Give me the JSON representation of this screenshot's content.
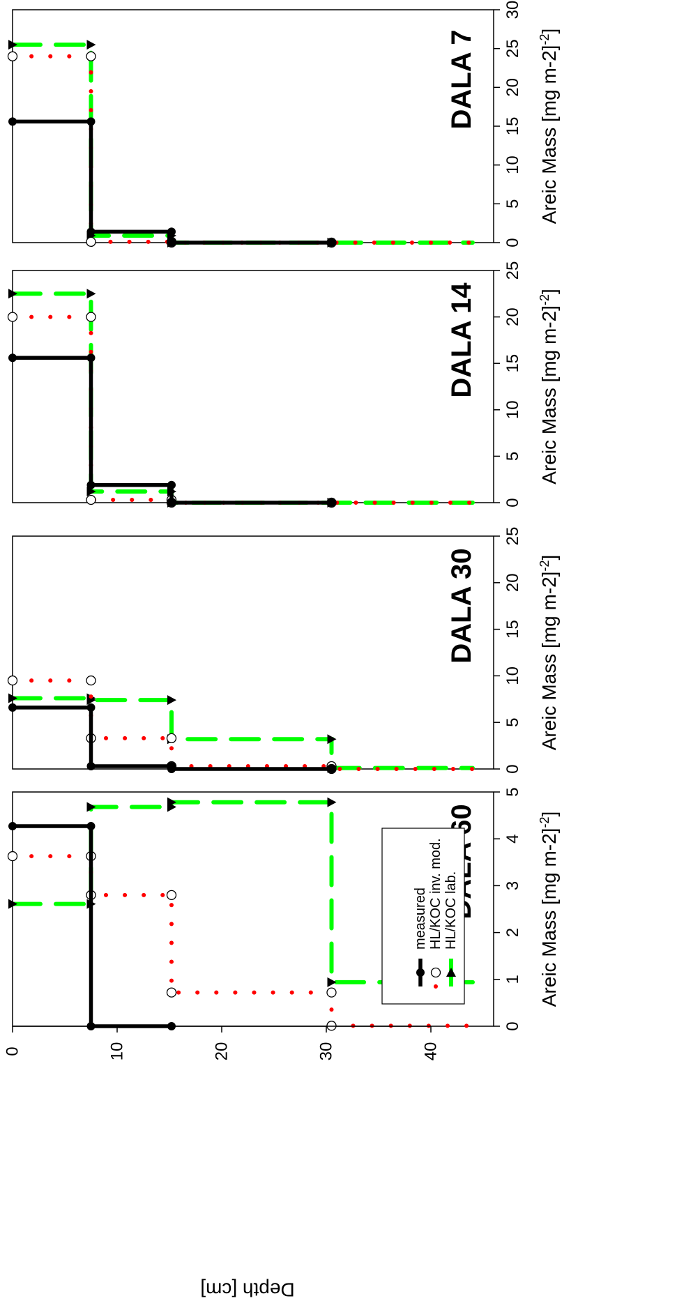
{
  "chart_data": {
    "type": "line",
    "ylabel": "Depth [cm]",
    "xlabel": "Areic Mass [mg m-2]",
    "ylim": [
      0,
      45
    ],
    "yticks": [
      0,
      10,
      20,
      30,
      40
    ],
    "legend": {
      "placement": "bottom-right",
      "entries": [
        {
          "series": "measured",
          "label": "measured"
        },
        {
          "series": "inv",
          "label": "HL/KOC inv. mod."
        },
        {
          "series": "lab",
          "label": "HL/KOC  lab."
        }
      ]
    },
    "series_styles": {
      "measured": {
        "color": "#000000",
        "marker": "filled-circle"
      },
      "inv": {
        "color": "#ff0000",
        "marker": "open-circle"
      },
      "lab": {
        "color": "#00ff00",
        "marker": "filled-triangle"
      }
    },
    "panels": [
      {
        "title": "DALA 7",
        "xlim": [
          0,
          30
        ],
        "xticks": [
          "0",
          "5",
          "10",
          "15",
          "20",
          "25",
          "30"
        ],
        "series": [
          {
            "key": "measured",
            "layers": [
              {
                "top": 0,
                "bottom": 7.5,
                "value": 15.6
              },
              {
                "top": 7.5,
                "bottom": 15.2,
                "value": 1.4
              },
              {
                "top": 15.2,
                "bottom": 30.5,
                "value": 0.0
              }
            ]
          },
          {
            "key": "inv",
            "layers": [
              {
                "top": 0,
                "bottom": 7.5,
                "value": 24.0
              },
              {
                "top": 7.5,
                "bottom": 15.2,
                "value": 0.1
              },
              {
                "top": 15.2,
                "bottom": 30.5,
                "value": 0.0
              },
              {
                "top": 30.5,
                "bottom": 44.0,
                "value": 0.0
              }
            ]
          },
          {
            "key": "lab",
            "layers": [
              {
                "top": 0,
                "bottom": 7.5,
                "value": 25.5
              },
              {
                "top": 7.5,
                "bottom": 15.2,
                "value": 0.9
              },
              {
                "top": 15.2,
                "bottom": 30.5,
                "value": 0.0
              },
              {
                "top": 30.5,
                "bottom": 44.0,
                "value": 0.0
              }
            ]
          }
        ]
      },
      {
        "title": "DALA 14",
        "xlim": [
          0,
          25
        ],
        "xticks": [
          "0",
          "5",
          "10",
          "15",
          "20",
          "25"
        ],
        "series": [
          {
            "key": "measured",
            "layers": [
              {
                "top": 0,
                "bottom": 7.5,
                "value": 15.6
              },
              {
                "top": 7.5,
                "bottom": 15.2,
                "value": 1.9
              },
              {
                "top": 15.2,
                "bottom": 30.5,
                "value": 0.0
              }
            ]
          },
          {
            "key": "inv",
            "layers": [
              {
                "top": 0,
                "bottom": 7.5,
                "value": 20.0
              },
              {
                "top": 7.5,
                "bottom": 15.2,
                "value": 0.3
              },
              {
                "top": 15.2,
                "bottom": 30.5,
                "value": 0.0
              },
              {
                "top": 30.5,
                "bottom": 44.0,
                "value": 0.0
              }
            ]
          },
          {
            "key": "lab",
            "layers": [
              {
                "top": 0,
                "bottom": 7.5,
                "value": 22.5
              },
              {
                "top": 7.5,
                "bottom": 15.2,
                "value": 1.2
              },
              {
                "top": 15.2,
                "bottom": 30.5,
                "value": 0.0
              },
              {
                "top": 30.5,
                "bottom": 44.0,
                "value": 0.0
              }
            ]
          }
        ]
      },
      {
        "title": "DALA 30",
        "xlim": [
          0,
          25
        ],
        "xticks": [
          "0",
          "5",
          "10",
          "15",
          "20",
          "25"
        ],
        "series": [
          {
            "key": "measured",
            "layers": [
              {
                "top": 0,
                "bottom": 7.5,
                "value": 6.6
              },
              {
                "top": 7.5,
                "bottom": 15.2,
                "value": 0.3
              },
              {
                "top": 15.2,
                "bottom": 30.5,
                "value": 0.0
              }
            ]
          },
          {
            "key": "inv",
            "layers": [
              {
                "top": 0,
                "bottom": 7.5,
                "value": 9.5
              },
              {
                "top": 7.5,
                "bottom": 15.2,
                "value": 3.3
              },
              {
                "top": 15.2,
                "bottom": 30.5,
                "value": 0.3
              },
              {
                "top": 30.5,
                "bottom": 44.0,
                "value": 0.0
              }
            ]
          },
          {
            "key": "lab",
            "layers": [
              {
                "top": 0,
                "bottom": 7.5,
                "value": 7.6
              },
              {
                "top": 7.5,
                "bottom": 15.2,
                "value": 7.4
              },
              {
                "top": 15.2,
                "bottom": 30.5,
                "value": 3.2
              },
              {
                "top": 30.5,
                "bottom": 44.0,
                "value": 0.1
              }
            ]
          }
        ]
      },
      {
        "title": "DALA 60",
        "xlim": [
          0,
          5
        ],
        "xticks": [
          "0",
          "1",
          "2",
          "3",
          "4",
          "5"
        ],
        "series": [
          {
            "key": "measured",
            "layers": [
              {
                "top": 0,
                "bottom": 7.5,
                "value": 4.27
              },
              {
                "top": 7.5,
                "bottom": 15.2,
                "value": 0.0
              }
            ]
          },
          {
            "key": "inv",
            "layers": [
              {
                "top": 0,
                "bottom": 7.5,
                "value": 3.63
              },
              {
                "top": 7.5,
                "bottom": 15.2,
                "value": 2.8
              },
              {
                "top": 15.2,
                "bottom": 30.5,
                "value": 0.72
              },
              {
                "top": 30.5,
                "bottom": 44.0,
                "value": 0.01
              }
            ]
          },
          {
            "key": "lab",
            "layers": [
              {
                "top": 0,
                "bottom": 7.5,
                "value": 2.61
              },
              {
                "top": 7.5,
                "bottom": 15.2,
                "value": 4.68
              },
              {
                "top": 15.2,
                "bottom": 30.5,
                "value": 4.78
              },
              {
                "top": 30.5,
                "bottom": 44.0,
                "value": 0.94
              }
            ]
          }
        ]
      }
    ]
  }
}
